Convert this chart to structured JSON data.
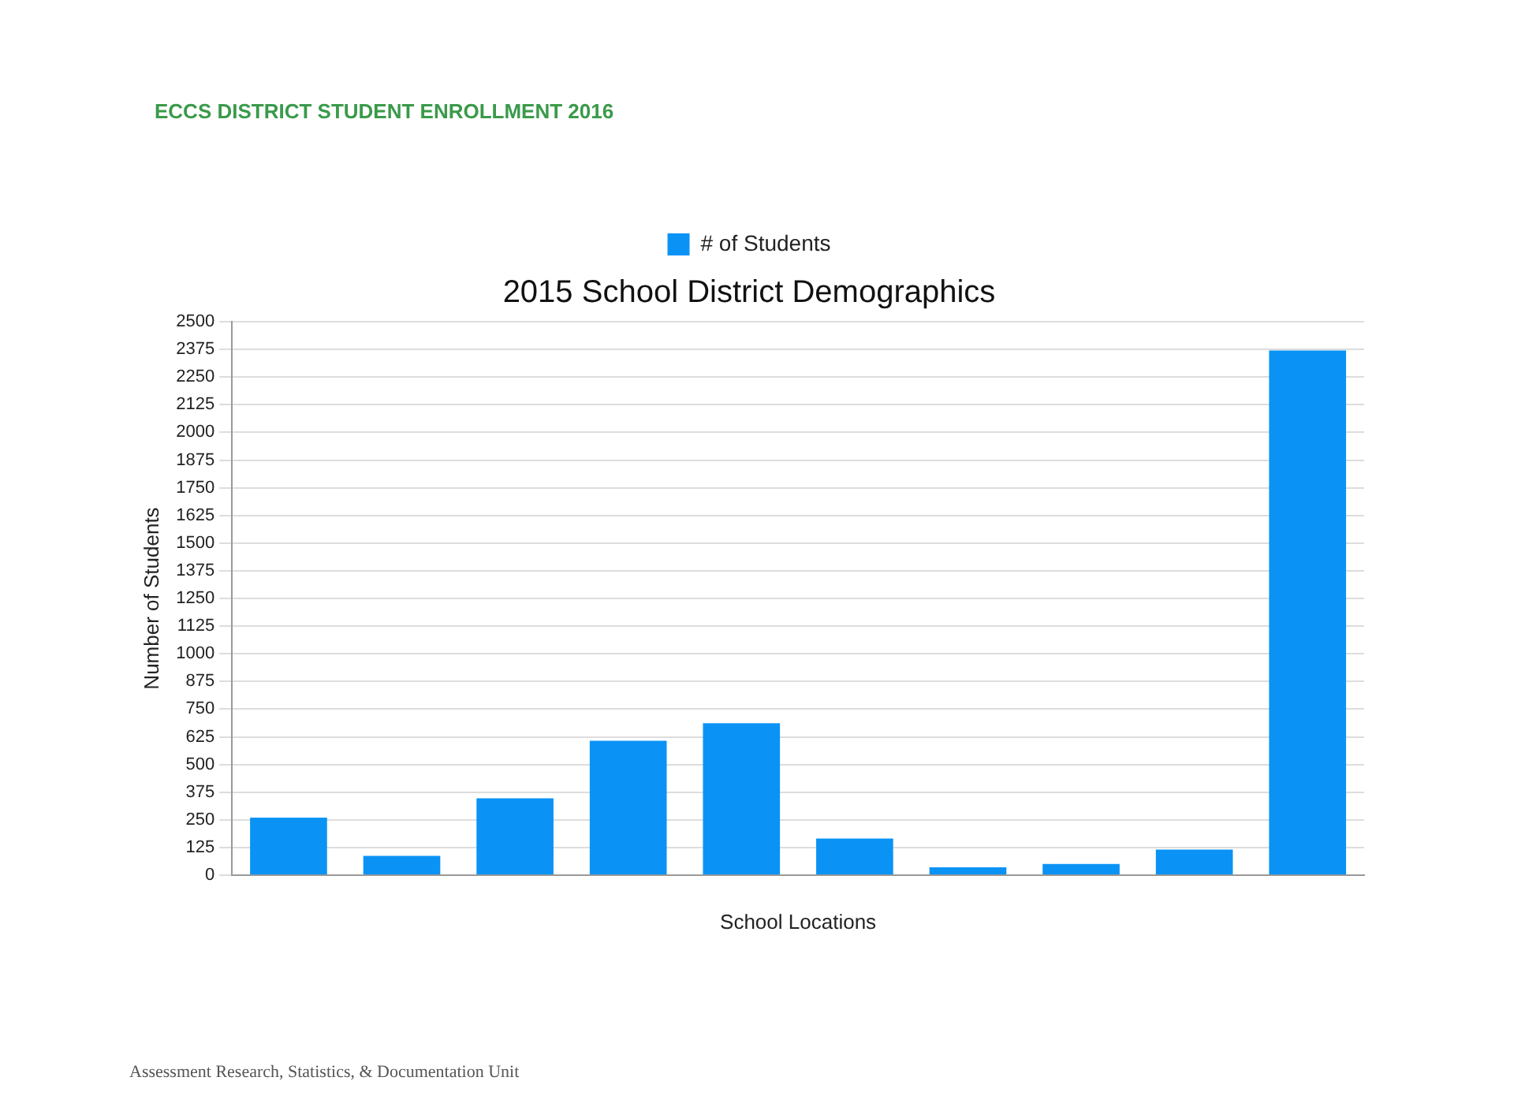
{
  "chart_data": {
    "type": "bar",
    "title": "ECCS DISTRICT STUDENT ENROLLMENT 2016",
    "subtitle": "2015 School District Demographics",
    "xlabel": "School Locations",
    "ylabel": "Number of Students",
    "categories": [
      null,
      null,
      null,
      null,
      null,
      null,
      null,
      null,
      null,
      null
    ],
    "series": [
      {
        "name": "# of Students",
        "color": "#0a93f5",
        "values": [
          260,
          87,
          347,
          607,
          686,
          166,
          36,
          51,
          116,
          2370
        ]
      }
    ],
    "ylim": [
      0,
      2500
    ],
    "yticks": [
      0,
      125,
      250,
      375,
      500,
      625,
      750,
      875,
      1000,
      1125,
      1250,
      1375,
      1500,
      1625,
      1750,
      1875,
      2000,
      2125,
      2250,
      2375,
      2500
    ],
    "grid": "y",
    "legend": "top",
    "annotations": [
      "Assessment Research, Statistics, & Documentation Unit"
    ]
  }
}
